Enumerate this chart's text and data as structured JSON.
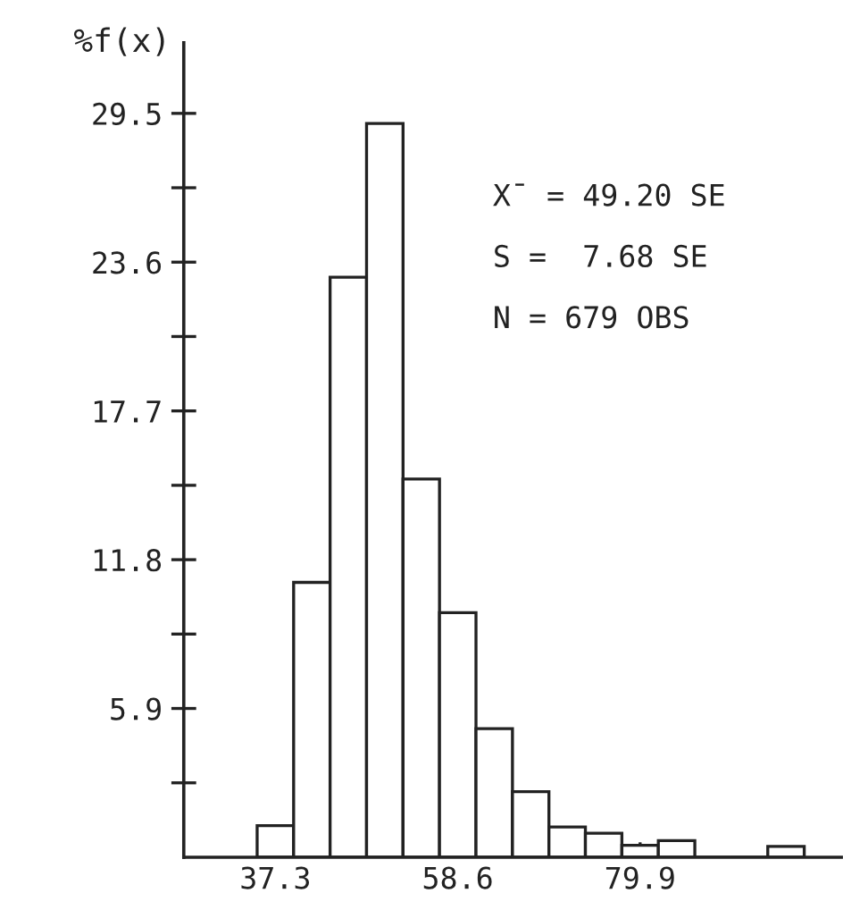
{
  "chart_data": {
    "type": "histogram",
    "ylabel": "%f(x)",
    "bins": [
      35.17,
      39.43,
      43.69,
      47.95,
      52.21,
      56.47,
      60.73,
      64.99,
      69.25,
      73.51,
      77.77,
      82.03,
      86.29,
      90.55,
      94.81,
      99.07
    ],
    "values": [
      1.25,
      10.9,
      23.0,
      29.1,
      15.0,
      9.7,
      5.1,
      2.6,
      1.2,
      0.95,
      0.47,
      0.66,
      0,
      0,
      0.43
    ],
    "color": "#ffffff",
    "xlim": [
      26.6,
      103.4
    ],
    "xticks": [
      37.3,
      58.6,
      79.9
    ],
    "ylim": [
      0,
      32.3
    ],
    "yticks": [
      {
        "value": 2.95,
        "label": null
      },
      5.9,
      {
        "value": 8.85,
        "label": null
      },
      11.8,
      {
        "value": 14.75,
        "label": null
      },
      17.7,
      {
        "value": 20.65,
        "label": null
      },
      23.6,
      {
        "value": 26.55,
        "label": null
      },
      29.5
    ],
    "grid": false,
    "legend": false,
    "annotations": [
      "X̄ = 49.20 SE",
      "S =  7.68 SE",
      "N = 679 OBS"
    ]
  }
}
